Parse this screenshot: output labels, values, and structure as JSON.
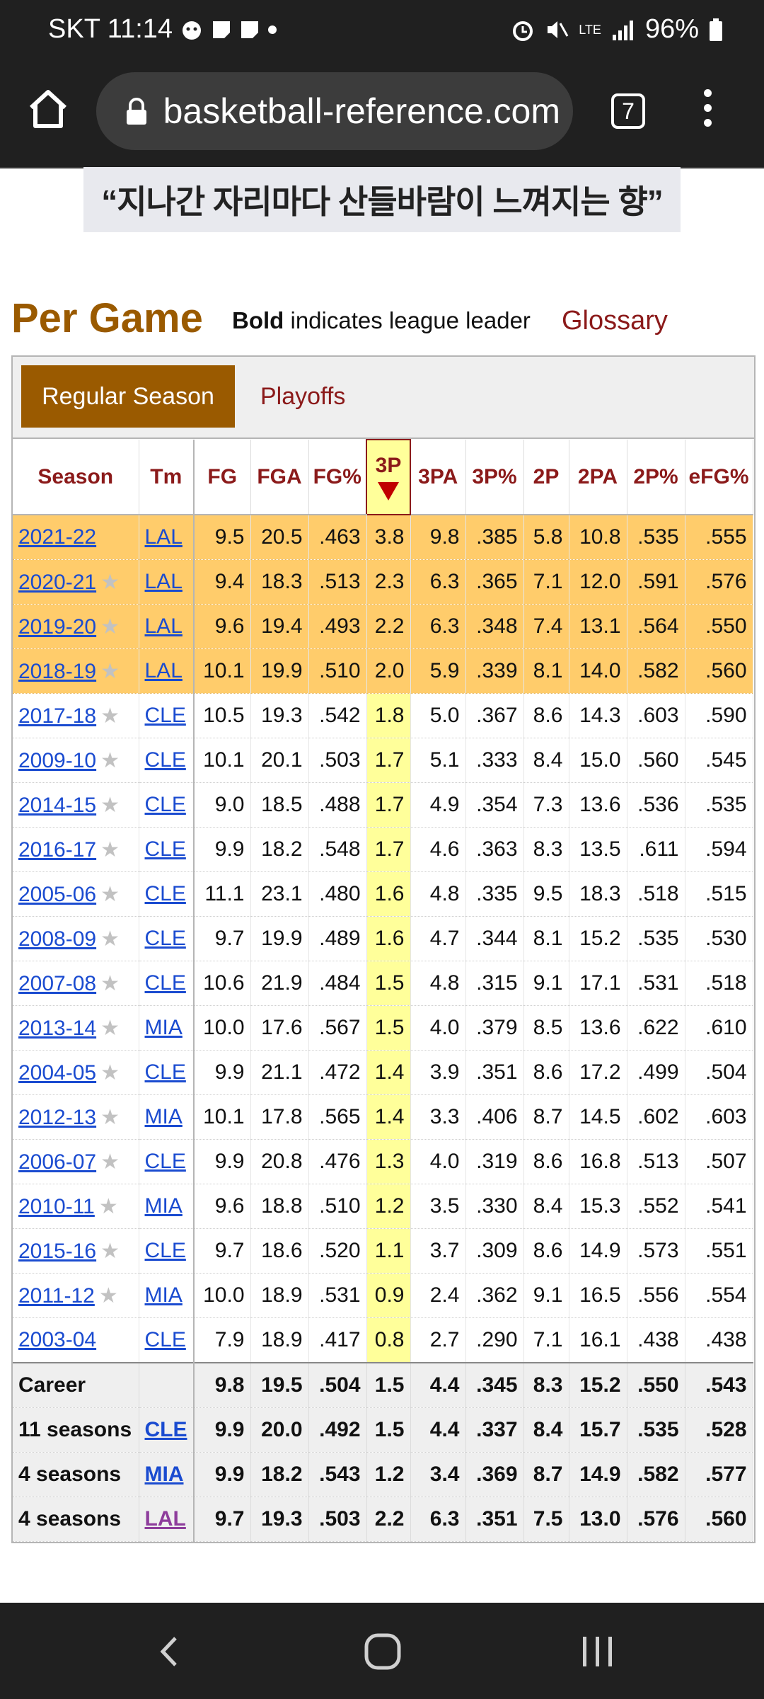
{
  "status": {
    "carrier_time": "SKT 11:14",
    "battery": "96%",
    "network": "LTE"
  },
  "browser": {
    "url": "basketball-reference.com",
    "tab_count": "7"
  },
  "ad": {
    "text": "“지나간 자리마다 산들바람이 느껴지는 향”"
  },
  "heading": {
    "title": "Per Game",
    "bold_word": "Bold",
    "note_rest": " indicates league leader",
    "glossary": "Glossary"
  },
  "filters": {
    "regular": "Regular Season",
    "playoffs": "Playoffs"
  },
  "columns": [
    "Season",
    "Tm",
    "FG",
    "FGA",
    "FG%",
    "3P",
    "3PA",
    "3P%",
    "2P",
    "2PA",
    "2P%",
    "eFG%"
  ],
  "rows": [
    [
      "2021-22",
      "LAL",
      "9.5",
      "20.5",
      ".463",
      "3.8",
      "9.8",
      ".385",
      "5.8",
      "10.8",
      ".535",
      ".555"
    ],
    [
      "2020-21",
      "LAL",
      "9.4",
      "18.3",
      ".513",
      "2.3",
      "6.3",
      ".365",
      "7.1",
      "12.0",
      ".591",
      ".576"
    ],
    [
      "2019-20",
      "LAL",
      "9.6",
      "19.4",
      ".493",
      "2.2",
      "6.3",
      ".348",
      "7.4",
      "13.1",
      ".564",
      ".550"
    ],
    [
      "2018-19",
      "LAL",
      "10.1",
      "19.9",
      ".510",
      "2.0",
      "5.9",
      ".339",
      "8.1",
      "14.0",
      ".582",
      ".560"
    ],
    [
      "2017-18",
      "CLE",
      "10.5",
      "19.3",
      ".542",
      "1.8",
      "5.0",
      ".367",
      "8.6",
      "14.3",
      ".603",
      ".590"
    ],
    [
      "2009-10",
      "CLE",
      "10.1",
      "20.1",
      ".503",
      "1.7",
      "5.1",
      ".333",
      "8.4",
      "15.0",
      ".560",
      ".545"
    ],
    [
      "2014-15",
      "CLE",
      "9.0",
      "18.5",
      ".488",
      "1.7",
      "4.9",
      ".354",
      "7.3",
      "13.6",
      ".536",
      ".535"
    ],
    [
      "2016-17",
      "CLE",
      "9.9",
      "18.2",
      ".548",
      "1.7",
      "4.6",
      ".363",
      "8.3",
      "13.5",
      ".611",
      ".594"
    ],
    [
      "2005-06",
      "CLE",
      "11.1",
      "23.1",
      ".480",
      "1.6",
      "4.8",
      ".335",
      "9.5",
      "18.3",
      ".518",
      ".515"
    ],
    [
      "2008-09",
      "CLE",
      "9.7",
      "19.9",
      ".489",
      "1.6",
      "4.7",
      ".344",
      "8.1",
      "15.2",
      ".535",
      ".530"
    ],
    [
      "2007-08",
      "CLE",
      "10.6",
      "21.9",
      ".484",
      "1.5",
      "4.8",
      ".315",
      "9.1",
      "17.1",
      ".531",
      ".518"
    ],
    [
      "2013-14",
      "MIA",
      "10.0",
      "17.6",
      ".567",
      "1.5",
      "4.0",
      ".379",
      "8.5",
      "13.6",
      ".622",
      ".610"
    ],
    [
      "2004-05",
      "CLE",
      "9.9",
      "21.1",
      ".472",
      "1.4",
      "3.9",
      ".351",
      "8.6",
      "17.2",
      ".499",
      ".504"
    ],
    [
      "2012-13",
      "MIA",
      "10.1",
      "17.8",
      ".565",
      "1.4",
      "3.3",
      ".406",
      "8.7",
      "14.5",
      ".602",
      ".603"
    ],
    [
      "2006-07",
      "CLE",
      "9.9",
      "20.8",
      ".476",
      "1.3",
      "4.0",
      ".319",
      "8.6",
      "16.8",
      ".513",
      ".507"
    ],
    [
      "2010-11",
      "MIA",
      "9.6",
      "18.8",
      ".510",
      "1.2",
      "3.5",
      ".330",
      "8.4",
      "15.3",
      ".552",
      ".541"
    ],
    [
      "2015-16",
      "CLE",
      "9.7",
      "18.6",
      ".520",
      "1.1",
      "3.7",
      ".309",
      "8.6",
      "14.9",
      ".573",
      ".551"
    ],
    [
      "2011-12",
      "MIA",
      "10.0",
      "18.9",
      ".531",
      "0.9",
      "2.4",
      ".362",
      "9.1",
      "16.5",
      ".556",
      ".554"
    ],
    [
      "2003-04",
      "CLE",
      "7.9",
      "18.9",
      ".417",
      "0.8",
      "2.7",
      ".290",
      "7.1",
      "16.1",
      ".438",
      ".438"
    ]
  ],
  "row_flags": {
    "highlighted": [
      true,
      true,
      true,
      true,
      false,
      false,
      false,
      false,
      false,
      false,
      false,
      false,
      false,
      false,
      false,
      false,
      false,
      false,
      false
    ],
    "star": [
      false,
      true,
      true,
      true,
      true,
      true,
      true,
      true,
      true,
      true,
      true,
      true,
      true,
      true,
      true,
      true,
      true,
      true,
      false
    ]
  },
  "summary": [
    [
      "Career",
      "",
      "9.8",
      "19.5",
      ".504",
      "1.5",
      "4.4",
      ".345",
      "8.3",
      "15.2",
      ".550",
      ".543"
    ],
    [
      "11 seasons",
      "CLE",
      "9.9",
      "20.0",
      ".492",
      "1.5",
      "4.4",
      ".337",
      "8.4",
      "15.7",
      ".535",
      ".528"
    ],
    [
      "4 seasons",
      "MIA",
      "9.9",
      "18.2",
      ".543",
      "1.2",
      "3.4",
      ".369",
      "8.7",
      "14.9",
      ".582",
      ".577"
    ],
    [
      "4 seasons",
      "LAL",
      "9.7",
      "19.3",
      ".503",
      "2.2",
      "6.3",
      ".351",
      "7.5",
      "13.0",
      ".576",
      ".560"
    ]
  ],
  "colors": {
    "accent": "#9a5a00",
    "link": "#1a4bd0",
    "header_text": "#8b1a1a",
    "highlight_row": "#ffcc6b",
    "sorted_col": "#ffff9a"
  }
}
